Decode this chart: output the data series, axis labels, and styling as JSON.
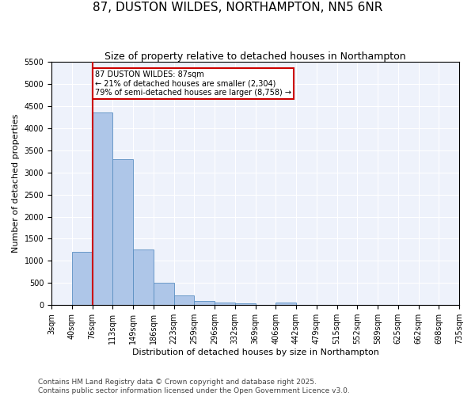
{
  "title": "87, DUSTON WILDES, NORTHAMPTON, NN5 6NR",
  "subtitle": "Size of property relative to detached houses in Northampton",
  "xlabel": "Distribution of detached houses by size in Northampton",
  "ylabel": "Number of detached properties",
  "footer_line1": "Contains HM Land Registry data © Crown copyright and database right 2025.",
  "footer_line2": "Contains public sector information licensed under the Open Government Licence v3.0.",
  "bins": [
    "3sqm",
    "40sqm",
    "76sqm",
    "113sqm",
    "149sqm",
    "186sqm",
    "223sqm",
    "259sqm",
    "296sqm",
    "332sqm",
    "369sqm",
    "406sqm",
    "442sqm",
    "479sqm",
    "515sqm",
    "552sqm",
    "589sqm",
    "625sqm",
    "662sqm",
    "698sqm",
    "735sqm"
  ],
  "values": [
    0,
    1200,
    4350,
    3300,
    1250,
    500,
    220,
    100,
    60,
    40,
    0,
    60,
    0,
    0,
    0,
    0,
    0,
    0,
    0,
    0
  ],
  "bar_color": "#aec6e8",
  "bar_edgecolor": "#5a8fc2",
  "red_line_bin_index": 2,
  "ylim": [
    0,
    5500
  ],
  "annotation_text": "87 DUSTON WILDES: 87sqm\n← 21% of detached houses are smaller (2,304)\n79% of semi-detached houses are larger (8,758) →",
  "annotation_box_color": "#ffffff",
  "annotation_box_edgecolor": "#cc0000",
  "annotation_text_color": "#000000",
  "background_color": "#eef2fb",
  "grid_color": "#ffffff",
  "title_fontsize": 11,
  "subtitle_fontsize": 9,
  "axis_label_fontsize": 8,
  "tick_fontsize": 7,
  "footer_fontsize": 6.5
}
